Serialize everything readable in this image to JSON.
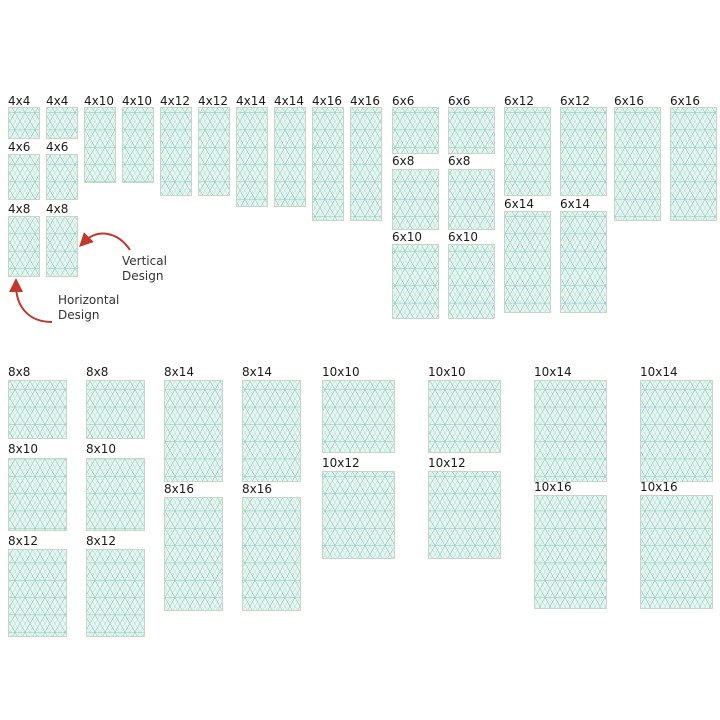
{
  "hoop_sizes": {
    "row1": [
      "4x4",
      "4x4",
      "4x6",
      "4x6",
      "4x8",
      "4x8",
      "4x10",
      "4x10",
      "4x12",
      "4x12",
      "4x14",
      "4x14",
      "4x16",
      "4x16",
      "6x6",
      "6x6",
      "6x8",
      "6x8",
      "6x10",
      "6x10",
      "6x12",
      "6x12",
      "6x14",
      "6x14",
      "6x16",
      "6x16"
    ],
    "row2": [
      "8x8",
      "8x8",
      "8x10",
      "8x10",
      "8x12",
      "8x12",
      "8x14",
      "8x14",
      "8x16",
      "8x16",
      "10x10",
      "10x10",
      "10x12",
      "10x12",
      "10x14",
      "10x14",
      "10x16",
      "10x16"
    ]
  },
  "annotations": {
    "vertical": "Vertical\nDesign",
    "horizontal": "Horizontal\nDesign"
  },
  "colors": {
    "tile_fill": "#e8f6f2",
    "tile_pattern": "#7fc9b9",
    "tile_border": "#c9d6c4",
    "arrow": "#c0392b"
  }
}
